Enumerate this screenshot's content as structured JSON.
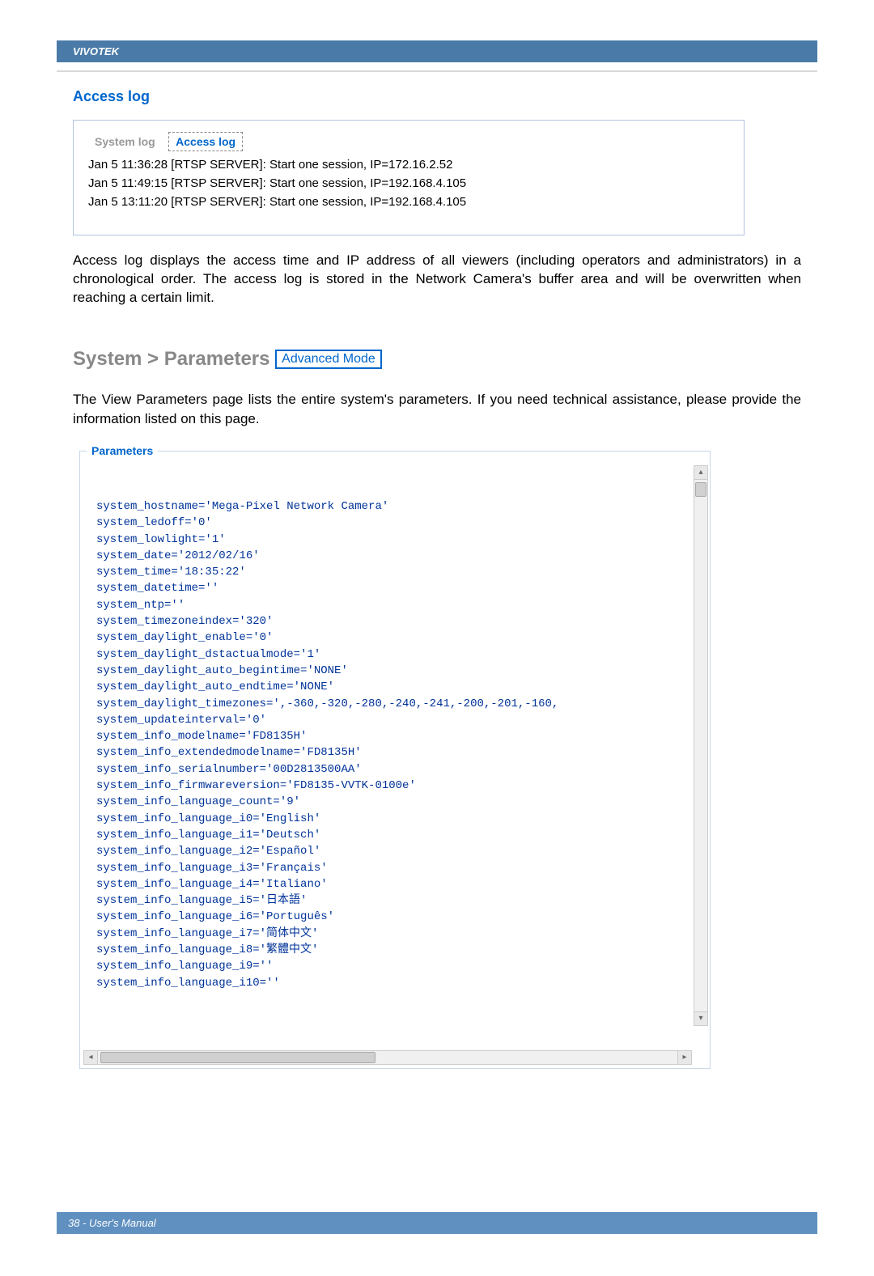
{
  "header": {
    "brand": "VIVOTEK"
  },
  "accessLog": {
    "title": "Access log",
    "tabs": {
      "system": "System log",
      "access": "Access log"
    },
    "lines": [
      "Jan 5 11:36:28 [RTSP SERVER]: Start one session, IP=172.16.2.52",
      "Jan 5 11:49:15 [RTSP SERVER]: Start one session, IP=192.168.4.105",
      "Jan 5 13:11:20 [RTSP SERVER]: Start one session, IP=192.168.4.105"
    ],
    "description": "Access log displays the access time and IP address of all viewers (including operators and administrators) in a chronological order. The access log is stored in the Network Camera's buffer area and will be overwritten when reaching a certain limit."
  },
  "systemParams": {
    "heading": "System > Parameters",
    "badge": "Advanced Mode",
    "description": "The View Parameters page lists the entire system's parameters. If you need technical assistance, please provide the information listed on this page.",
    "legend": "Parameters",
    "lines": [
      "system_hostname='Mega-Pixel Network Camera'",
      "system_ledoff='0'",
      "system_lowlight='1'",
      "system_date='2012/02/16'",
      "system_time='18:35:22'",
      "system_datetime=''",
      "system_ntp=''",
      "system_timezoneindex='320'",
      "system_daylight_enable='0'",
      "system_daylight_dstactualmode='1'",
      "system_daylight_auto_begintime='NONE'",
      "system_daylight_auto_endtime='NONE'",
      "system_daylight_timezones=',-360,-320,-280,-240,-241,-200,-201,-160,",
      "system_updateinterval='0'",
      "system_info_modelname='FD8135H'",
      "system_info_extendedmodelname='FD8135H'",
      "system_info_serialnumber='00D2813500AA'",
      "system_info_firmwareversion='FD8135-VVTK-0100e'",
      "system_info_language_count='9'",
      "system_info_language_i0='English'",
      "system_info_language_i1='Deutsch'",
      "system_info_language_i2='Español'",
      "system_info_language_i3='Français'",
      "system_info_language_i4='Italiano'",
      "system_info_language_i5='日本語'",
      "system_info_language_i6='Português'",
      "system_info_language_i7='简体中文'",
      "system_info_language_i8='繁體中文'",
      "system_info_language_i9=''",
      "system_info_language_i10=''"
    ]
  },
  "footer": {
    "text": "38 - User's Manual"
  },
  "style": {
    "header_bg": "#4a7ba8",
    "link_color": "#0066cc",
    "param_text_color": "#003399",
    "box_border": "#b0c4de"
  }
}
